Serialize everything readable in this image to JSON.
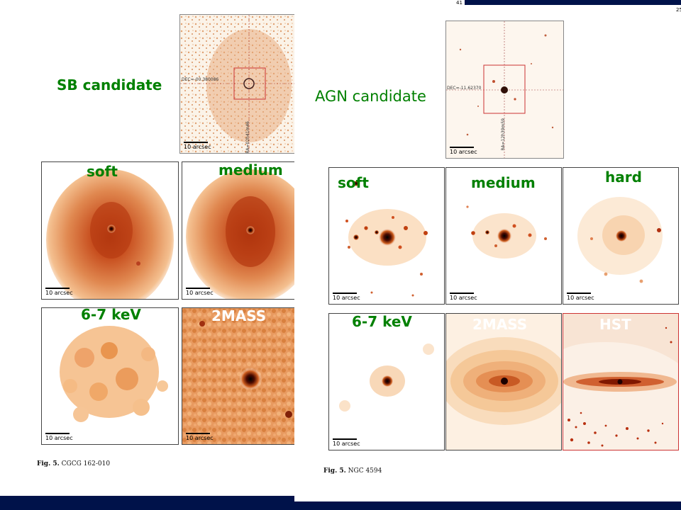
{
  "left_figure": {
    "title": "SB candidate",
    "overview_scale": "10 arcsec",
    "overview_dec": "DEC=-00.380086",
    "overview_ra": "RA=02h41m46",
    "panels": [
      {
        "label": "soft",
        "scale": "10 arcsec"
      },
      {
        "label": "medium",
        "scale": "10 arcsec"
      },
      {
        "label": "6-7 keV",
        "scale": "10 arcsec"
      },
      {
        "label": "2MASS",
        "scale": "10 arcsec"
      }
    ],
    "caption_fig": "Fig. 5.",
    "caption_text": "CGCG 162-010"
  },
  "right_figure": {
    "page_number": "41",
    "corner_number": "25",
    "title": "AGN candidate",
    "overview_scale": "10 arcsec",
    "overview_dec": "DEC=-11.62370",
    "overview_ra": "RA=12h39m59",
    "panels": [
      {
        "label": "soft",
        "scale": "10 arcsec"
      },
      {
        "label": "medium",
        "scale": "10 arcsec"
      },
      {
        "label": "hard",
        "scale": "10 arcsec"
      },
      {
        "label": "6-7 keV",
        "scale": "10 arcsec"
      },
      {
        "label": "2MASS",
        "scale": ""
      },
      {
        "label": "HST",
        "scale": ""
      }
    ],
    "caption_fig": "Fig. 5.",
    "caption_text": "NGC 4594"
  },
  "colors": {
    "label_green": "#008000",
    "bottom_bar": "#00124a",
    "outline_red": "#cc3333"
  }
}
